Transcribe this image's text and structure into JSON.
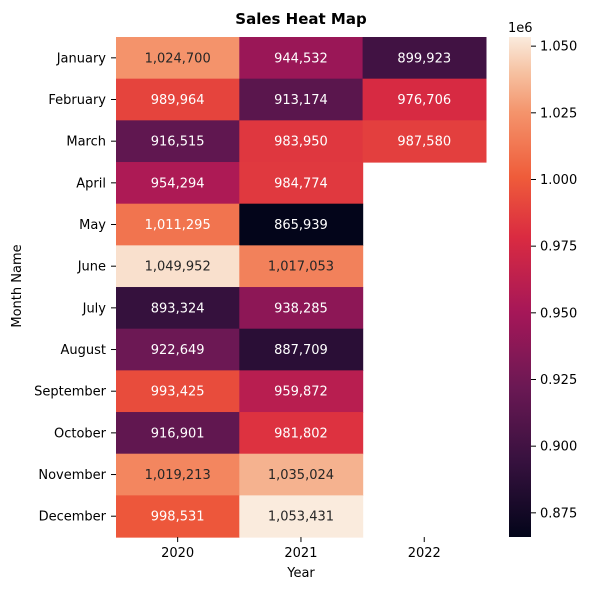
{
  "chart_data": {
    "type": "heatmap",
    "title": "Sales Heat Map",
    "xlabel": "Year",
    "ylabel": "Month Name",
    "x": [
      "2020",
      "2021",
      "2022"
    ],
    "y": [
      "January",
      "February",
      "March",
      "April",
      "May",
      "June",
      "July",
      "August",
      "September",
      "October",
      "November",
      "December"
    ],
    "values": [
      [
        1024700,
        944532,
        899923
      ],
      [
        989964,
        913174,
        976706
      ],
      [
        916515,
        983950,
        987580
      ],
      [
        954294,
        984774,
        null
      ],
      [
        1011295,
        865939,
        null
      ],
      [
        1049952,
        1017053,
        null
      ],
      [
        893324,
        938285,
        null
      ],
      [
        922649,
        887709,
        null
      ],
      [
        993425,
        959872,
        null
      ],
      [
        916901,
        981802,
        null
      ],
      [
        1019213,
        1035024,
        null
      ],
      [
        998531,
        1053431,
        null
      ]
    ],
    "colorbar": {
      "scale_label": "1e6",
      "ticks": [
        0.875,
        0.9,
        0.925,
        0.95,
        0.975,
        1.0,
        1.025,
        1.05
      ],
      "tick_labels": [
        "0.875",
        "0.900",
        "0.925",
        "0.950",
        "0.975",
        "1.000",
        "1.025",
        "1.050"
      ],
      "vmin": 865939,
      "vmax": 1053431,
      "colormap": "rocket"
    },
    "legend": "colorbar-right",
    "grid": false
  }
}
